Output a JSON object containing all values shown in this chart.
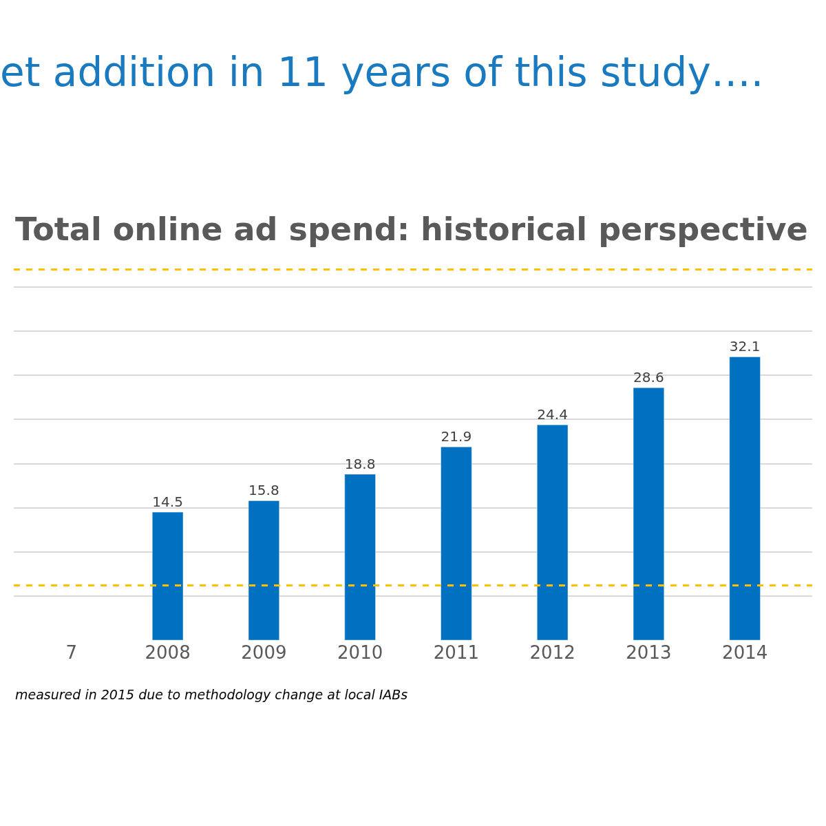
{
  "chart_data": {
    "type": "bar",
    "title": "et addition in 11 years of this study….",
    "subtitle": "Total online ad spend: historical perspective",
    "categories": [
      "7",
      "2008",
      "2009",
      "2010",
      "2011",
      "2012",
      "2013",
      "2014"
    ],
    "values": [
      null,
      14.5,
      15.8,
      18.8,
      21.9,
      24.4,
      28.6,
      32.1
    ],
    "color": "#0070c0",
    "data_labels": true,
    "grid": "y",
    "tick_labels": "x",
    "ref_lines": [
      {
        "axis": "y",
        "value": 42,
        "color": "#ffc000",
        "line_style": "dashed"
      },
      {
        "axis": "y",
        "value": 6.2,
        "color": "#ffc000",
        "line_style": "dashed"
      }
    ],
    "annotations": [
      "measured in 2015 due to methodology change at local IABs"
    ]
  }
}
